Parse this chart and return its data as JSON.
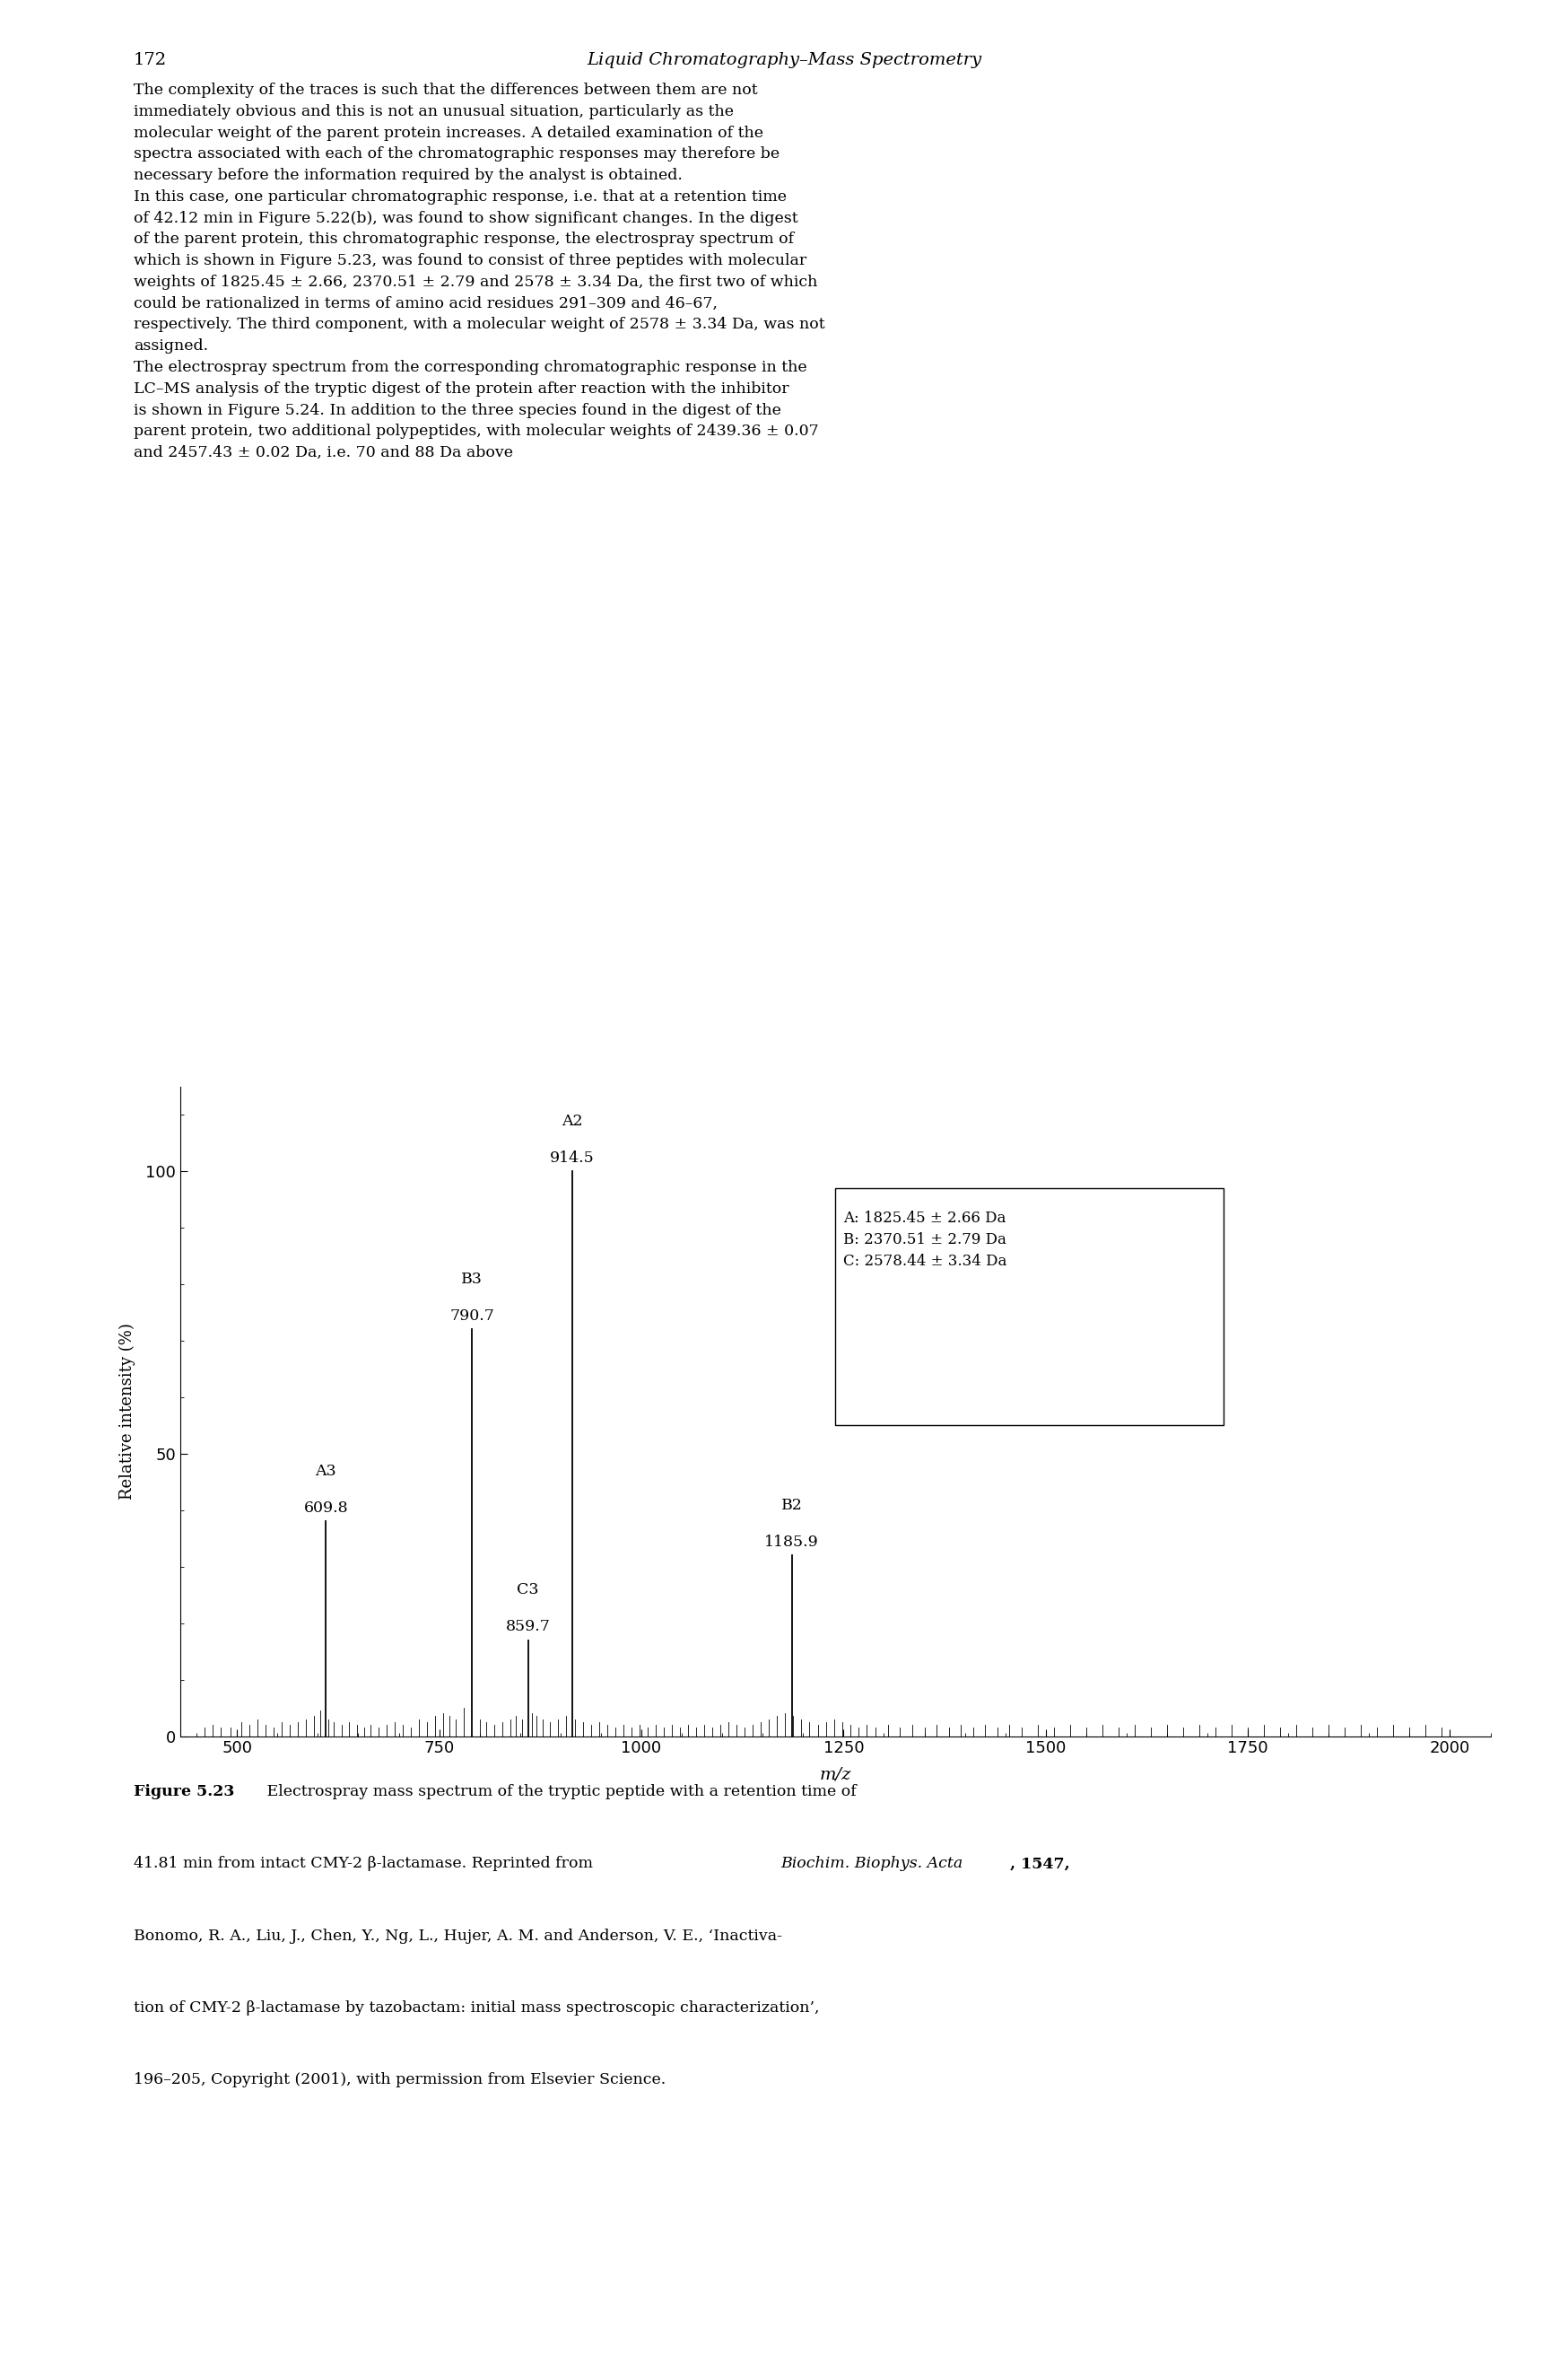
{
  "peaks": [
    {
      "label": "A2",
      "mz": 914.5,
      "intensity": 100.0
    },
    {
      "label": "B3",
      "mz": 790.7,
      "intensity": 72.0
    },
    {
      "label": "A3",
      "mz": 609.8,
      "intensity": 38.0
    },
    {
      "label": "B2",
      "mz": 1185.9,
      "intensity": 32.0
    },
    {
      "label": "C3",
      "mz": 859.7,
      "intensity": 17.0
    }
  ],
  "noise_peaks": [
    {
      "mz": 460,
      "intensity": 1.5
    },
    {
      "mz": 470,
      "intensity": 2.0
    },
    {
      "mz": 480,
      "intensity": 1.5
    },
    {
      "mz": 492,
      "intensity": 1.5
    },
    {
      "mz": 505,
      "intensity": 2.5
    },
    {
      "mz": 515,
      "intensity": 2.0
    },
    {
      "mz": 525,
      "intensity": 3.0
    },
    {
      "mz": 535,
      "intensity": 2.0
    },
    {
      "mz": 545,
      "intensity": 1.5
    },
    {
      "mz": 555,
      "intensity": 2.5
    },
    {
      "mz": 565,
      "intensity": 2.0
    },
    {
      "mz": 575,
      "intensity": 2.5
    },
    {
      "mz": 585,
      "intensity": 3.0
    },
    {
      "mz": 595,
      "intensity": 3.5
    },
    {
      "mz": 603,
      "intensity": 4.5
    },
    {
      "mz": 613,
      "intensity": 3.0
    },
    {
      "mz": 620,
      "intensity": 2.5
    },
    {
      "mz": 630,
      "intensity": 2.0
    },
    {
      "mz": 638,
      "intensity": 2.5
    },
    {
      "mz": 648,
      "intensity": 2.0
    },
    {
      "mz": 657,
      "intensity": 1.5
    },
    {
      "mz": 665,
      "intensity": 2.0
    },
    {
      "mz": 675,
      "intensity": 1.5
    },
    {
      "mz": 685,
      "intensity": 2.0
    },
    {
      "mz": 695,
      "intensity": 2.5
    },
    {
      "mz": 705,
      "intensity": 2.0
    },
    {
      "mz": 715,
      "intensity": 1.5
    },
    {
      "mz": 725,
      "intensity": 3.0
    },
    {
      "mz": 735,
      "intensity": 2.5
    },
    {
      "mz": 745,
      "intensity": 3.5
    },
    {
      "mz": 755,
      "intensity": 4.0
    },
    {
      "mz": 763,
      "intensity": 3.5
    },
    {
      "mz": 770,
      "intensity": 3.0
    },
    {
      "mz": 780,
      "intensity": 5.0
    },
    {
      "mz": 800,
      "intensity": 3.0
    },
    {
      "mz": 808,
      "intensity": 2.5
    },
    {
      "mz": 818,
      "intensity": 2.0
    },
    {
      "mz": 828,
      "intensity": 2.5
    },
    {
      "mz": 838,
      "intensity": 3.0
    },
    {
      "mz": 845,
      "intensity": 3.5
    },
    {
      "mz": 852,
      "intensity": 3.0
    },
    {
      "mz": 865,
      "intensity": 4.0
    },
    {
      "mz": 870,
      "intensity": 3.5
    },
    {
      "mz": 878,
      "intensity": 3.0
    },
    {
      "mz": 887,
      "intensity": 2.5
    },
    {
      "mz": 897,
      "intensity": 3.0
    },
    {
      "mz": 907,
      "intensity": 3.5
    },
    {
      "mz": 918,
      "intensity": 3.0
    },
    {
      "mz": 928,
      "intensity": 2.5
    },
    {
      "mz": 938,
      "intensity": 2.0
    },
    {
      "mz": 948,
      "intensity": 2.5
    },
    {
      "mz": 958,
      "intensity": 2.0
    },
    {
      "mz": 968,
      "intensity": 1.5
    },
    {
      "mz": 978,
      "intensity": 2.0
    },
    {
      "mz": 988,
      "intensity": 1.5
    },
    {
      "mz": 998,
      "intensity": 2.0
    },
    {
      "mz": 1008,
      "intensity": 1.5
    },
    {
      "mz": 1018,
      "intensity": 2.0
    },
    {
      "mz": 1028,
      "intensity": 1.5
    },
    {
      "mz": 1038,
      "intensity": 2.0
    },
    {
      "mz": 1048,
      "intensity": 1.5
    },
    {
      "mz": 1058,
      "intensity": 2.0
    },
    {
      "mz": 1068,
      "intensity": 1.5
    },
    {
      "mz": 1078,
      "intensity": 2.0
    },
    {
      "mz": 1088,
      "intensity": 1.5
    },
    {
      "mz": 1098,
      "intensity": 2.0
    },
    {
      "mz": 1108,
      "intensity": 2.5
    },
    {
      "mz": 1118,
      "intensity": 2.0
    },
    {
      "mz": 1128,
      "intensity": 1.5
    },
    {
      "mz": 1138,
      "intensity": 2.0
    },
    {
      "mz": 1148,
      "intensity": 2.5
    },
    {
      "mz": 1158,
      "intensity": 3.0
    },
    {
      "mz": 1168,
      "intensity": 3.5
    },
    {
      "mz": 1178,
      "intensity": 4.0
    },
    {
      "mz": 1188,
      "intensity": 3.5
    },
    {
      "mz": 1198,
      "intensity": 3.0
    },
    {
      "mz": 1208,
      "intensity": 2.5
    },
    {
      "mz": 1218,
      "intensity": 2.0
    },
    {
      "mz": 1228,
      "intensity": 2.5
    },
    {
      "mz": 1238,
      "intensity": 3.0
    },
    {
      "mz": 1248,
      "intensity": 2.5
    },
    {
      "mz": 1258,
      "intensity": 2.0
    },
    {
      "mz": 1268,
      "intensity": 1.5
    },
    {
      "mz": 1278,
      "intensity": 2.0
    },
    {
      "mz": 1290,
      "intensity": 1.5
    },
    {
      "mz": 1305,
      "intensity": 2.0
    },
    {
      "mz": 1320,
      "intensity": 1.5
    },
    {
      "mz": 1335,
      "intensity": 2.0
    },
    {
      "mz": 1350,
      "intensity": 1.5
    },
    {
      "mz": 1365,
      "intensity": 2.0
    },
    {
      "mz": 1380,
      "intensity": 1.5
    },
    {
      "mz": 1395,
      "intensity": 2.0
    },
    {
      "mz": 1410,
      "intensity": 1.5
    },
    {
      "mz": 1425,
      "intensity": 2.0
    },
    {
      "mz": 1440,
      "intensity": 1.5
    },
    {
      "mz": 1455,
      "intensity": 2.0
    },
    {
      "mz": 1470,
      "intensity": 1.5
    },
    {
      "mz": 1490,
      "intensity": 2.0
    },
    {
      "mz": 1510,
      "intensity": 1.5
    },
    {
      "mz": 1530,
      "intensity": 2.0
    },
    {
      "mz": 1550,
      "intensity": 1.5
    },
    {
      "mz": 1570,
      "intensity": 2.0
    },
    {
      "mz": 1590,
      "intensity": 1.5
    },
    {
      "mz": 1610,
      "intensity": 2.0
    },
    {
      "mz": 1630,
      "intensity": 1.5
    },
    {
      "mz": 1650,
      "intensity": 2.0
    },
    {
      "mz": 1670,
      "intensity": 1.5
    },
    {
      "mz": 1690,
      "intensity": 2.0
    },
    {
      "mz": 1710,
      "intensity": 1.5
    },
    {
      "mz": 1730,
      "intensity": 2.0
    },
    {
      "mz": 1750,
      "intensity": 1.5
    },
    {
      "mz": 1770,
      "intensity": 2.0
    },
    {
      "mz": 1790,
      "intensity": 1.5
    },
    {
      "mz": 1810,
      "intensity": 2.0
    },
    {
      "mz": 1830,
      "intensity": 1.5
    },
    {
      "mz": 1850,
      "intensity": 2.0
    },
    {
      "mz": 1870,
      "intensity": 1.5
    },
    {
      "mz": 1890,
      "intensity": 2.0
    },
    {
      "mz": 1910,
      "intensity": 1.5
    },
    {
      "mz": 1930,
      "intensity": 2.0
    },
    {
      "mz": 1950,
      "intensity": 1.5
    },
    {
      "mz": 1970,
      "intensity": 2.0
    },
    {
      "mz": 1990,
      "intensity": 1.5
    }
  ],
  "xlim": [
    430,
    2050
  ],
  "ylim": [
    0,
    115
  ],
  "xticks": [
    500,
    750,
    1000,
    1250,
    1500,
    1750,
    2000
  ],
  "yticks": [
    0,
    50,
    100
  ],
  "xlabel": "m/z",
  "ylabel": "Relative intensity (%)",
  "legend_text": "A: 1825.45 ± 2.66 Da\nB: 2370.51 ± 2.79 Da\nC: 2578.44 ± 3.34 Da",
  "page_number": "172",
  "page_header": "Liquid Chromatography–Mass Spectrometry",
  "body_para1": "    The complexity of the traces is such that the differences between them are not immediately obvious and this is not an unusual situation, particularly as the molecular weight of the parent protein increases. A detailed examination of the spectra associated with each of the chromatographic responses may therefore be necessary before the information required by the analyst is obtained.",
  "body_para2": "    In this case, one particular chromatographic response, i.e. that at a retention time of 42.12 min in Figure 5.22(b), was found to show significant changes. In the digest of the parent protein, this chromatographic response, the electrospray spectrum of which is shown in Figure 5.23, was found to consist of three peptides with molecular weights of 1825.45 ± 2.66, 2370.51 ± 2.79 and 2578 ± 3.34 Da, the first two of which could be rationalized in terms of amino acid residues 291–309 and 46–67, respectively. The third component, with a molecular weight of 2578 ± 3.34 Da, was not assigned.",
  "body_para3": "    The electrospray spectrum from the corresponding chromatographic response in the LC–MS analysis of the tryptic digest of the protein after reaction with the inhibitor is shown in Figure 5.24. In addition to the three species found in the digest of the parent protein, two additional polypeptides, with molecular weights of 2439.36 ± 0.07 and 2457.43 ± 0.02 Da, i.e. 70 and 88 Da above",
  "background_color": "#ffffff",
  "text_color": "#000000",
  "line_color": "#000000"
}
